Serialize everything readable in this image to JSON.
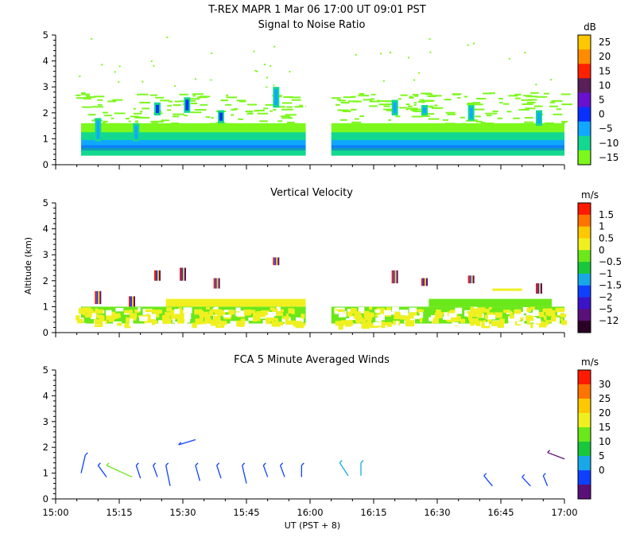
{
  "header": {
    "title": "T-REX   MAPR   1 Mar 06   17:00 UT   09:01   PST"
  },
  "shared_axes": {
    "y_label": "Altitude (km)",
    "x_label": "UT  (PST + 8)",
    "x_ticks": [
      "15:00",
      "15:15",
      "15:30",
      "15:45",
      "16:00",
      "16:15",
      "16:30",
      "16:45",
      "17:00"
    ],
    "y_ticks": [
      "0",
      "1",
      "2",
      "3",
      "4",
      "5"
    ]
  },
  "chart_data": [
    {
      "type": "heatmap",
      "title": "Signal to Noise Ratio",
      "xlabel": "",
      "ylabel": "",
      "xlim": [
        "15:00",
        "17:00"
      ],
      "ylim": [
        0,
        5
      ],
      "data_gap": [
        "15:59",
        "16:05"
      ],
      "colorbar": {
        "unit": "dB",
        "labels": [
          "25",
          "20",
          "15",
          "10",
          "5",
          "0",
          "−5",
          "−10",
          "−15"
        ],
        "colors": [
          "#ffc800",
          "#ff8c00",
          "#ff2000",
          "#581f58",
          "#6a10d0",
          "#0a30ff",
          "#10a8ff",
          "#12d890",
          "#7cf81c"
        ]
      },
      "features": [
        {
          "x": "15:10",
          "y": [
            0.9,
            1.8
          ],
          "level": "−5"
        },
        {
          "x": "15:19",
          "y": [
            0.9,
            1.6
          ],
          "level": "−10"
        },
        {
          "x": "15:24",
          "y": [
            1.9,
            2.4
          ],
          "level": "0"
        },
        {
          "x": "15:31",
          "y": [
            2.0,
            2.6
          ],
          "level": "0"
        },
        {
          "x": "15:39",
          "y": [
            1.6,
            2.1
          ],
          "level": "0"
        },
        {
          "x": "15:52",
          "y": [
            2.2,
            3.0
          ],
          "level": "−10"
        },
        {
          "x": "16:20",
          "y": [
            1.9,
            2.5
          ],
          "level": "−5"
        },
        {
          "x": "16:27",
          "y": [
            1.9,
            2.3
          ],
          "level": "−5"
        },
        {
          "x": "16:38",
          "y": [
            1.7,
            2.3
          ],
          "level": "−10"
        },
        {
          "x": "16:54",
          "y": [
            1.5,
            2.1
          ],
          "level": "−5"
        }
      ]
    },
    {
      "type": "heatmap",
      "title": "Vertical Velocity",
      "xlabel": "",
      "ylabel": "Altitude (km)",
      "xlim": [
        "15:00",
        "17:00"
      ],
      "ylim": [
        0,
        5
      ],
      "data_gap": [
        "15:59",
        "16:05"
      ],
      "colorbar": {
        "unit": "m/s",
        "labels": [
          "1.5",
          "1",
          "0.5",
          "0",
          "−0.5",
          "−1",
          "−1.5",
          "−2",
          "−5",
          "−12"
        ],
        "colors": [
          "#ff1a00",
          "#ff7400",
          "#ffc800",
          "#f0f020",
          "#6ae81a",
          "#18c83c",
          "#18a8e8",
          "#1040ff",
          "#3c14c8",
          "#5a1078",
          "#2a0024"
        ]
      },
      "features": [
        {
          "x": "15:10",
          "y": [
            1.1,
            1.6
          ]
        },
        {
          "x": "15:18",
          "y": [
            1.0,
            1.4
          ]
        },
        {
          "x": "15:24",
          "y": [
            2.0,
            2.4
          ]
        },
        {
          "x": "15:30",
          "y": [
            2.0,
            2.5
          ]
        },
        {
          "x": "15:38",
          "y": [
            1.7,
            2.1
          ]
        },
        {
          "x": "15:52",
          "y": [
            2.6,
            2.9
          ]
        },
        {
          "x": "16:20",
          "y": [
            1.9,
            2.4
          ]
        },
        {
          "x": "16:27",
          "y": [
            1.8,
            2.1
          ]
        },
        {
          "x": "16:38",
          "y": [
            1.9,
            2.2
          ]
        },
        {
          "x": "16:54",
          "y": [
            1.5,
            1.9
          ]
        }
      ]
    },
    {
      "type": "scatter",
      "title": "FCA 5 Minute Averaged Winds",
      "xlabel": "UT  (PST + 8)",
      "ylabel": "",
      "xlim": [
        "15:00",
        "17:00"
      ],
      "ylim": [
        0,
        5
      ],
      "colorbar": {
        "unit": "m/s",
        "labels": [
          "30",
          "25",
          "20",
          "15",
          "10",
          "5",
          "0"
        ],
        "colors": [
          "#ff1a00",
          "#ff7400",
          "#ffc800",
          "#f0f020",
          "#6ae81a",
          "#18c83c",
          "#18a8e8",
          "#1040ff",
          "#5a1078"
        ]
      },
      "barbs": [
        {
          "x": "15:07",
          "y": 1.7,
          "end_x": "15:06",
          "end_y": 1.0,
          "color": "#1040ff"
        },
        {
          "x": "15:10",
          "y": 1.3,
          "end_x": "15:12",
          "end_y": 0.85,
          "color": "#1040ff"
        },
        {
          "x": "15:12",
          "y": 1.3,
          "end_x": "15:18",
          "end_y": 0.85,
          "color": "#6ae81a"
        },
        {
          "x": "15:19",
          "y": 1.3,
          "end_x": "15:20",
          "end_y": 0.8,
          "color": "#1040ff"
        },
        {
          "x": "15:23",
          "y": 1.3,
          "end_x": "15:24",
          "end_y": 0.85,
          "color": "#1040ff"
        },
        {
          "x": "15:26",
          "y": 1.3,
          "end_x": "15:27",
          "end_y": 0.5,
          "color": "#1040ff"
        },
        {
          "x": "15:33",
          "y": 1.3,
          "end_x": "15:34",
          "end_y": 0.7,
          "color": "#1040ff"
        },
        {
          "x": "15:38",
          "y": 1.3,
          "end_x": "15:39",
          "end_y": 0.8,
          "color": "#1040ff"
        },
        {
          "x": "15:44",
          "y": 1.3,
          "end_x": "15:45",
          "end_y": 0.6,
          "color": "#1040ff"
        },
        {
          "x": "15:49",
          "y": 1.3,
          "end_x": "15:50",
          "end_y": 0.85,
          "color": "#1040ff"
        },
        {
          "x": "15:53",
          "y": 1.3,
          "end_x": "15:54",
          "end_y": 0.85,
          "color": "#1040ff"
        },
        {
          "x": "15:58",
          "y": 1.3,
          "end_x": "15:58",
          "end_y": 0.85,
          "color": "#1040ff"
        },
        {
          "x": "16:07",
          "y": 1.4,
          "end_x": "16:09",
          "end_y": 0.9,
          "color": "#18a8e8"
        },
        {
          "x": "16:12",
          "y": 1.4,
          "end_x": "16:12",
          "end_y": 0.9,
          "color": "#18a8e8"
        },
        {
          "x": "15:29",
          "y": 2.1,
          "end_x": "15:33",
          "end_y": 2.3,
          "color": "#1040ff"
        },
        {
          "x": "16:41",
          "y": 0.9,
          "end_x": "16:43",
          "end_y": 0.5,
          "color": "#1040ff"
        },
        {
          "x": "16:50",
          "y": 0.85,
          "end_x": "16:52",
          "end_y": 0.5,
          "color": "#1040ff"
        },
        {
          "x": "16:55",
          "y": 0.9,
          "end_x": "16:56",
          "end_y": 0.5,
          "color": "#1040ff"
        },
        {
          "x": "16:56",
          "y": 1.8,
          "end_x": "17:00",
          "end_y": 1.55,
          "color": "#5a1078"
        }
      ]
    }
  ]
}
